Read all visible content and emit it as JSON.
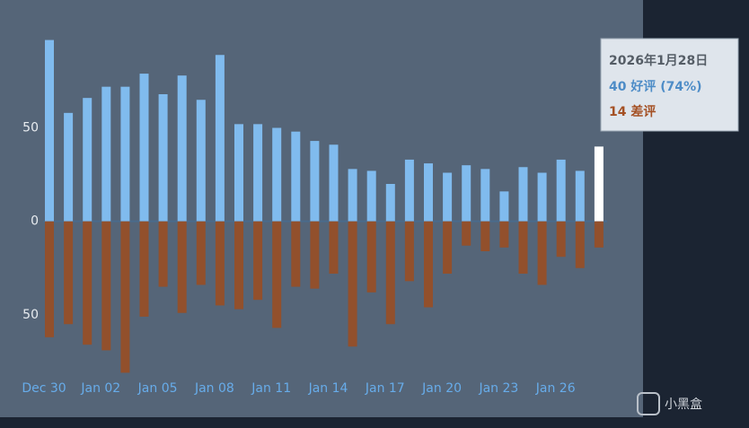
{
  "chart_data": {
    "type": "bar",
    "categories": [
      "Dec 30",
      null,
      null,
      "Jan 02",
      null,
      null,
      "Jan 05",
      null,
      null,
      "Jan 08",
      null,
      null,
      "Jan 11",
      null,
      null,
      "Jan 14",
      null,
      null,
      "Jan 17",
      null,
      null,
      "Jan 20",
      null,
      null,
      "Jan 23",
      null,
      null,
      "Jan 26",
      null,
      null
    ],
    "series": [
      {
        "color": "#80bbee",
        "values": [
          97,
          58,
          66,
          72,
          72,
          79,
          68,
          78,
          65,
          89,
          52,
          52,
          50,
          48,
          43,
          41,
          28,
          27,
          20,
          33,
          31,
          26,
          30,
          28,
          16,
          29,
          26,
          33,
          27,
          40
        ]
      },
      {
        "color": "#92502c",
        "values": [
          -62,
          -55,
          -66,
          -69,
          -81,
          -51,
          -35,
          -49,
          -34,
          -45,
          -47,
          -42,
          -57,
          -35,
          -36,
          -28,
          -67,
          -38,
          -55,
          -32,
          -46,
          -28,
          -13,
          -16,
          -14,
          -28,
          -34,
          -19,
          -25,
          -14
        ]
      }
    ],
    "highlight": {
      "index": 29,
      "color": "#ffffff"
    },
    "ylim": [
      -88,
      104
    ],
    "yticks": [
      {
        "value": -50,
        "label": "50"
      },
      0,
      50
    ],
    "grid": false,
    "tooltip": {
      "date": "2026年1月28日",
      "positive": "40 好评 (74%)",
      "negative": "14 差评"
    }
  },
  "watermark": "小黑盒"
}
